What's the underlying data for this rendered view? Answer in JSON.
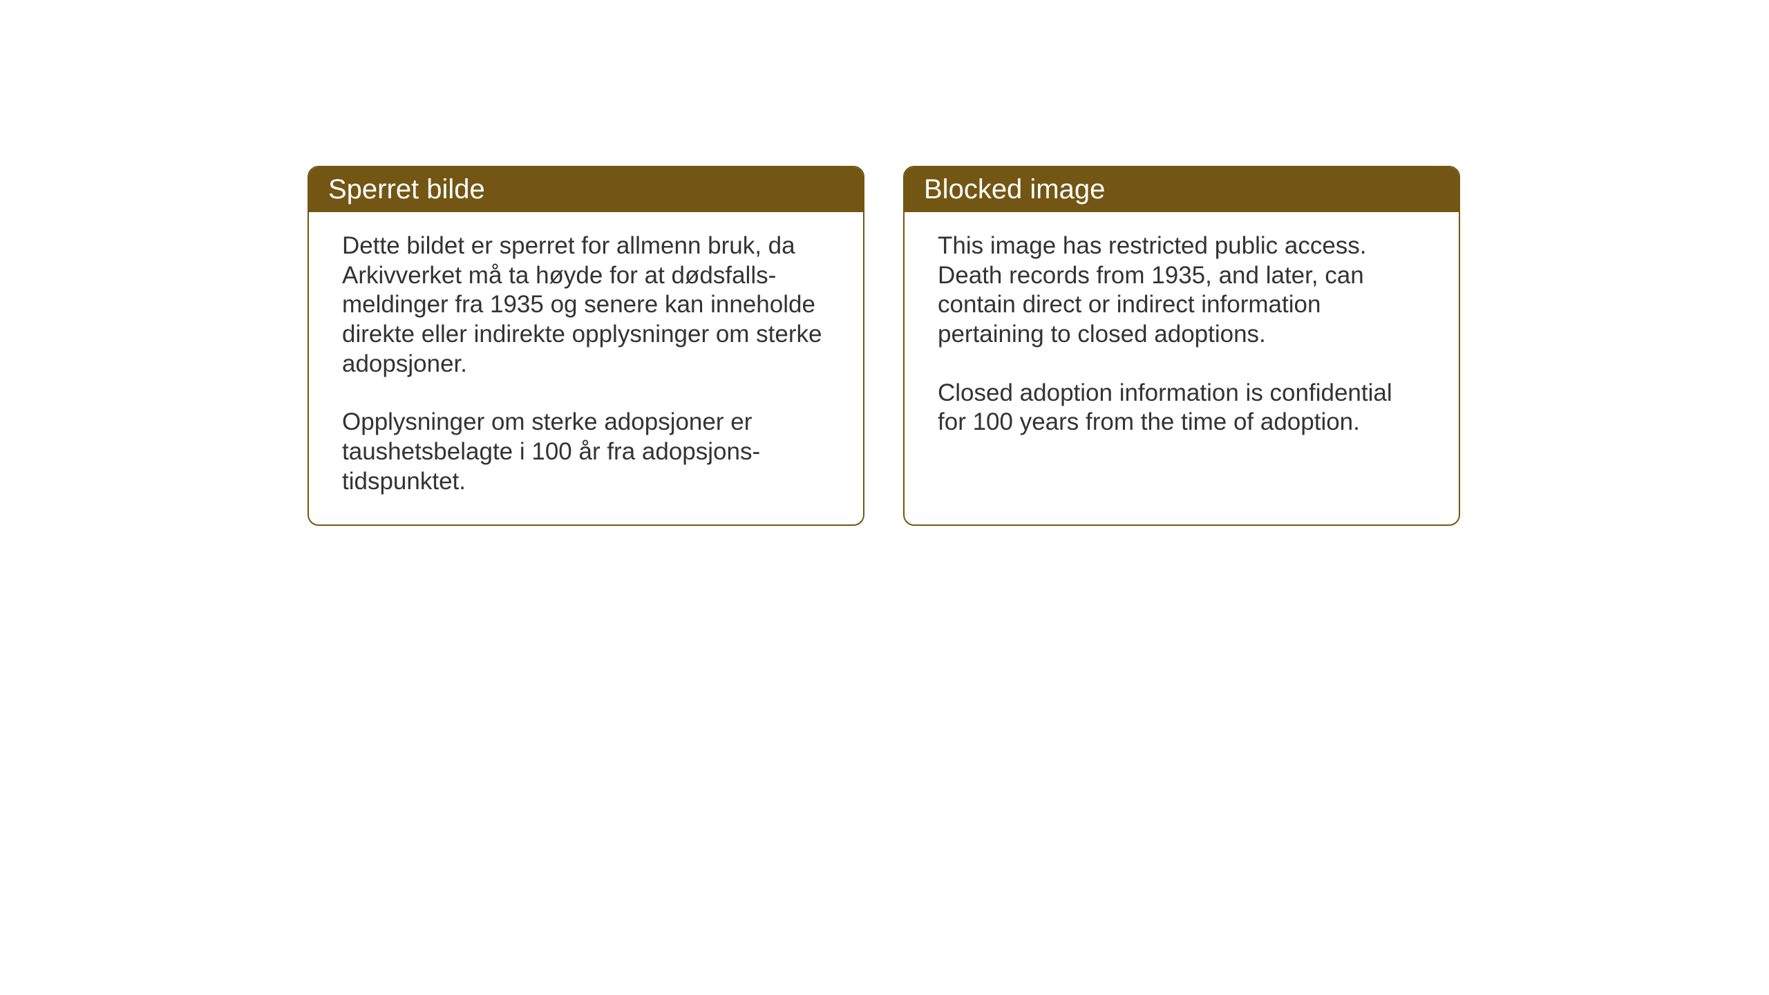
{
  "page": {
    "background_color": "#ffffff",
    "card_border_color": "#735614",
    "card_border_radius": 16,
    "header_bg_color": "#735614",
    "header_text_color": "#ffffff",
    "body_text_color": "#333333",
    "header_fontsize": 40,
    "body_fontsize": 35
  },
  "notices": {
    "left": {
      "title": "Sperret bilde",
      "paragraph1": "Dette bildet er sperret for allmenn bruk, da Arkivverket må ta høyde for at dødsfalls-meldinger fra 1935 og senere kan inneholde direkte eller indirekte opplysninger om sterke adopsjoner.",
      "paragraph2": "Opplysninger om sterke adopsjoner er taushetsbelagte i 100 år fra adopsjons-tidspunktet."
    },
    "right": {
      "title": "Blocked image",
      "paragraph1": "This image has restricted public access. Death records from 1935, and later, can contain direct or indirect information pertaining to closed adoptions.",
      "paragraph2": "Closed adoption information is confidential for 100 years from the time of adoption."
    }
  }
}
